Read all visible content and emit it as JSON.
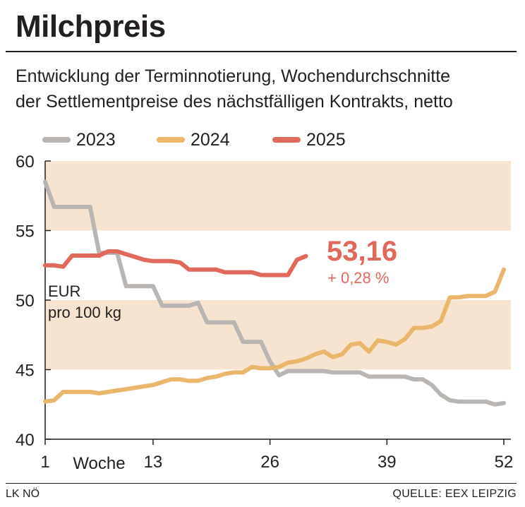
{
  "title": "Milchpreis",
  "subtitle_line1": "Entwicklung der Terminnotierung, Wochendurchschnitte",
  "subtitle_line2": "der Settlementpreise des nächstfälligen Kontrakts, netto",
  "footer_left": "LK NÖ",
  "footer_right": "QUELLE: EEX LEIPZIG",
  "colors": {
    "2023": "#b8b5b2",
    "2024": "#e9b66b",
    "2025": "#e0695c",
    "band": "#f7e4d0",
    "text": "#231f20"
  },
  "chart_data": {
    "type": "line",
    "title": "Milchpreis",
    "ylabel": "EUR\npro 100 kg",
    "xlabel": "Woche",
    "ylim": [
      40,
      60
    ],
    "xlim": [
      1,
      52
    ],
    "y_ticks": [
      40,
      45,
      50,
      55,
      60
    ],
    "y_tick_labels": [
      "40",
      "45",
      "50",
      "55",
      "60"
    ],
    "x_ticks": [
      1,
      13,
      26,
      39,
      52
    ],
    "x_tick_labels": [
      "1",
      "13",
      "26",
      "39",
      "52"
    ],
    "bands": [
      [
        45,
        50
      ],
      [
        55,
        60
      ]
    ],
    "grid": false,
    "legend_position": "top",
    "series": [
      {
        "name": "2023",
        "x": [
          1,
          2,
          3,
          4,
          5,
          6,
          7,
          8,
          9,
          10,
          11,
          12,
          13,
          14,
          15,
          16,
          17,
          18,
          19,
          20,
          21,
          22,
          23,
          24,
          25,
          26,
          27,
          28,
          29,
          30,
          31,
          32,
          33,
          34,
          35,
          36,
          37,
          38,
          39,
          40,
          41,
          42,
          43,
          44,
          45,
          46,
          47,
          48,
          49,
          50,
          51,
          52
        ],
        "values": [
          58.5,
          56.7,
          56.7,
          56.7,
          56.7,
          56.7,
          53.4,
          53.4,
          53.4,
          51.0,
          51.0,
          51.0,
          51.0,
          49.6,
          49.6,
          49.6,
          49.6,
          49.8,
          48.4,
          48.4,
          48.4,
          48.4,
          47.0,
          47.0,
          47.0,
          45.6,
          44.6,
          44.9,
          44.9,
          44.9,
          44.9,
          44.9,
          44.8,
          44.8,
          44.8,
          44.8,
          44.5,
          44.5,
          44.5,
          44.5,
          44.5,
          44.3,
          44.3,
          43.9,
          43.2,
          42.8,
          42.7,
          42.7,
          42.7,
          42.7,
          42.5,
          42.6
        ],
        "line_color": "#b8b5b2"
      },
      {
        "name": "2024",
        "x": [
          1,
          2,
          3,
          4,
          5,
          6,
          7,
          8,
          9,
          10,
          11,
          12,
          13,
          14,
          15,
          16,
          17,
          18,
          19,
          20,
          21,
          22,
          23,
          24,
          25,
          26,
          27,
          28,
          29,
          30,
          31,
          32,
          33,
          34,
          35,
          36,
          37,
          38,
          39,
          40,
          41,
          42,
          43,
          44,
          45,
          46,
          47,
          48,
          49,
          50,
          51,
          52
        ],
        "values": [
          42.7,
          42.8,
          43.4,
          43.4,
          43.4,
          43.4,
          43.3,
          43.4,
          43.5,
          43.6,
          43.7,
          43.8,
          43.9,
          44.1,
          44.3,
          44.3,
          44.2,
          44.2,
          44.4,
          44.5,
          44.7,
          44.8,
          44.8,
          45.2,
          45.1,
          45.1,
          45.2,
          45.5,
          45.6,
          45.8,
          46.1,
          46.3,
          45.9,
          46.1,
          46.8,
          46.9,
          46.3,
          47.1,
          47.0,
          46.8,
          47.2,
          48.0,
          48.0,
          48.1,
          48.5,
          50.2,
          50.2,
          50.3,
          50.3,
          50.3,
          50.6,
          52.2
        ],
        "line_color": "#e9b66b"
      },
      {
        "name": "2025",
        "x": [
          1,
          2,
          3,
          4,
          5,
          6,
          7,
          8,
          9,
          10,
          11,
          12,
          13,
          14,
          15,
          16,
          17,
          18,
          19,
          20,
          21,
          22,
          23,
          24,
          25,
          26,
          27,
          28,
          29,
          30
        ],
        "values": [
          52.5,
          52.5,
          52.4,
          53.2,
          53.2,
          53.2,
          53.2,
          53.5,
          53.5,
          53.3,
          53.1,
          52.9,
          52.8,
          52.8,
          52.8,
          52.7,
          52.2,
          52.2,
          52.2,
          52.2,
          52.0,
          52.0,
          52.0,
          52.0,
          51.8,
          51.8,
          51.8,
          51.8,
          52.9,
          53.16
        ],
        "line_color": "#e0695c"
      }
    ],
    "annotations": [
      {
        "text": "53,16",
        "series": "2025"
      },
      {
        "text": "+ 0,28 %",
        "series": "2025"
      }
    ]
  }
}
